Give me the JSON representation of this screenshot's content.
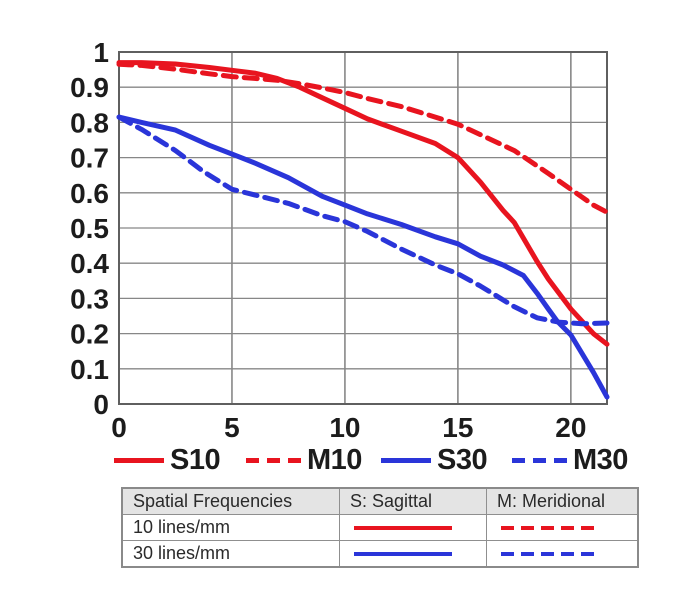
{
  "chart_data": {
    "type": "line",
    "title": "",
    "xlabel": "",
    "ylabel": "",
    "xlim": [
      0,
      21.6
    ],
    "ylim": [
      0,
      1
    ],
    "grid": true,
    "x_ticks": [
      0,
      5,
      10,
      15,
      20
    ],
    "x_tick_labels": [
      "0",
      "5",
      "10",
      "15",
      "20"
    ],
    "y_ticks": [
      0,
      0.1,
      0.2,
      0.3,
      0.4,
      0.5,
      0.6,
      0.7,
      0.8,
      0.9,
      1
    ],
    "y_tick_labels": [
      "0",
      "0.1",
      "0.2",
      "0.3",
      "0.4",
      "0.5",
      "0.6",
      "0.7",
      "0.8",
      "0.9",
      "1"
    ],
    "legend_position": "bottom",
    "series": [
      {
        "name": "S10",
        "color": "#e8141f",
        "style": "solid",
        "x": [
          0,
          1,
          2.5,
          4,
          5,
          6,
          7,
          8,
          9,
          10,
          11,
          12.5,
          14,
          15,
          16,
          17,
          17.5,
          18.5,
          19,
          20,
          21,
          21.6
        ],
        "y": [
          0.97,
          0.97,
          0.966,
          0.956,
          0.948,
          0.94,
          0.925,
          0.9,
          0.87,
          0.84,
          0.81,
          0.775,
          0.74,
          0.7,
          0.63,
          0.55,
          0.515,
          0.405,
          0.355,
          0.27,
          0.2,
          0.17
        ]
      },
      {
        "name": "M10",
        "color": "#e8141f",
        "style": "dashed",
        "x": [
          0,
          1,
          2.5,
          4,
          5,
          6,
          7,
          8,
          9,
          10,
          11,
          12.5,
          14,
          15,
          16,
          17.5,
          19,
          20,
          21,
          21.6
        ],
        "y": [
          0.965,
          0.962,
          0.951,
          0.938,
          0.93,
          0.925,
          0.92,
          0.91,
          0.898,
          0.885,
          0.868,
          0.845,
          0.815,
          0.795,
          0.765,
          0.72,
          0.655,
          0.61,
          0.565,
          0.545
        ]
      },
      {
        "name": "S30",
        "color": "#2a35d9",
        "style": "solid",
        "x": [
          0,
          1,
          2.5,
          4,
          5,
          6,
          7.5,
          9,
          10,
          11,
          12.5,
          14,
          15,
          16,
          17,
          17.9,
          18.5,
          19,
          19.4,
          20,
          21,
          21.6
        ],
        "y": [
          0.815,
          0.8,
          0.778,
          0.735,
          0.71,
          0.685,
          0.643,
          0.59,
          0.565,
          0.54,
          0.51,
          0.475,
          0.455,
          0.42,
          0.395,
          0.365,
          0.315,
          0.27,
          0.235,
          0.196,
          0.09,
          0.02
        ]
      },
      {
        "name": "M30",
        "color": "#2a35d9",
        "style": "dashed",
        "x": [
          0,
          1,
          2.5,
          3.75,
          5,
          6,
          7.5,
          9,
          10,
          11,
          12.5,
          14,
          15,
          16,
          17.5,
          18.5,
          19.5,
          20.5,
          21.6
        ],
        "y": [
          0.815,
          0.78,
          0.72,
          0.66,
          0.61,
          0.594,
          0.57,
          0.535,
          0.518,
          0.49,
          0.44,
          0.395,
          0.37,
          0.335,
          0.276,
          0.245,
          0.232,
          0.228,
          0.23
        ]
      }
    ]
  },
  "legend": {
    "items": [
      {
        "label": "S10",
        "color": "#e8141f",
        "style": "solid"
      },
      {
        "label": "M10",
        "color": "#e8141f",
        "style": "dashed"
      },
      {
        "label": "S30",
        "color": "#2a35d9",
        "style": "solid"
      },
      {
        "label": "M30",
        "color": "#2a35d9",
        "style": "dashed"
      }
    ]
  },
  "table": {
    "headers": [
      "Spatial Frequencies",
      "S: Sagittal",
      "M: Meridional"
    ],
    "rows": [
      {
        "frequency": "10 lines/mm",
        "color": "#e8141f"
      },
      {
        "frequency": "30 lines/mm",
        "color": "#2a35d9"
      }
    ]
  },
  "colors": {
    "red": "#e8141f",
    "blue": "#2a35d9",
    "grid_line": "#878787",
    "plot_frame": "#5f5f5f",
    "table_border": "#8a8a8a",
    "table_header_bg": "#e4e4e4",
    "text": "#1c1c1c"
  }
}
